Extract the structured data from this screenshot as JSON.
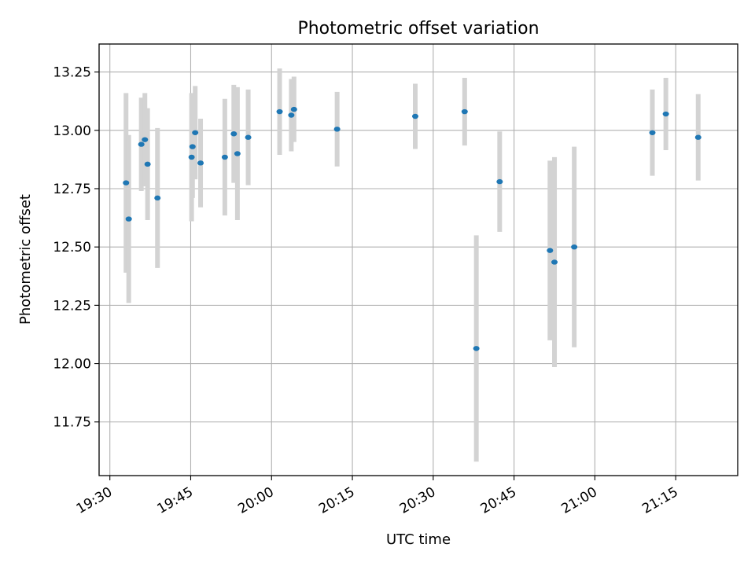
{
  "chart_data": {
    "type": "scatter",
    "title": "Photometric offset variation",
    "xlabel": "UTC time",
    "ylabel": "Photometric offset",
    "x_ticks": [
      "19:30",
      "19:45",
      "20:00",
      "20:15",
      "20:30",
      "20:45",
      "21:00",
      "21:15"
    ],
    "y_ticks": [
      "11.75",
      "12.00",
      "12.25",
      "12.50",
      "12.75",
      "13.00",
      "13.25"
    ],
    "xlim": [
      "19:28:00",
      "21:26:30"
    ],
    "ylim": [
      11.52,
      13.37
    ],
    "grid": true,
    "colors": {
      "point": "#1f77b4",
      "errorbar": "#d3d3d3",
      "grid": "#b0b0b0"
    },
    "series": [
      {
        "points": [
          {
            "x": "19:33:00",
            "y": 12.775,
            "err": 0.385
          },
          {
            "x": "19:33:30",
            "y": 12.62,
            "err": 0.36
          },
          {
            "x": "19:35:50",
            "y": 12.94,
            "err": 0.2
          },
          {
            "x": "19:36:30",
            "y": 12.96,
            "err": 0.2
          },
          {
            "x": "19:37:00",
            "y": 12.855,
            "err": 0.24
          },
          {
            "x": "19:38:50",
            "y": 12.71,
            "err": 0.3
          },
          {
            "x": "19:45:10",
            "y": 12.885,
            "err": 0.275
          },
          {
            "x": "19:45:20",
            "y": 12.93,
            "err": 0.22
          },
          {
            "x": "19:45:50",
            "y": 12.99,
            "err": 0.2
          },
          {
            "x": "19:46:50",
            "y": 12.86,
            "err": 0.19
          },
          {
            "x": "19:51:20",
            "y": 12.885,
            "err": 0.25
          },
          {
            "x": "19:53:00",
            "y": 12.985,
            "err": 0.21
          },
          {
            "x": "19:53:40",
            "y": 12.9,
            "err": 0.285
          },
          {
            "x": "19:55:40",
            "y": 12.97,
            "err": 0.205
          },
          {
            "x": "20:01:30",
            "y": 13.08,
            "err": 0.185
          },
          {
            "x": "20:03:40",
            "y": 13.065,
            "err": 0.155
          },
          {
            "x": "20:04:10",
            "y": 13.09,
            "err": 0.14
          },
          {
            "x": "20:12:10",
            "y": 13.005,
            "err": 0.16
          },
          {
            "x": "20:26:40",
            "y": 13.06,
            "err": 0.14
          },
          {
            "x": "20:35:50",
            "y": 13.08,
            "err": 0.145
          },
          {
            "x": "20:38:00",
            "y": 12.065,
            "err": 0.485
          },
          {
            "x": "20:42:20",
            "y": 12.78,
            "err": 0.215
          },
          {
            "x": "20:51:40",
            "y": 12.485,
            "err": 0.385
          },
          {
            "x": "20:52:30",
            "y": 12.435,
            "err": 0.45
          },
          {
            "x": "20:56:10",
            "y": 12.5,
            "err": 0.43
          },
          {
            "x": "21:10:40",
            "y": 12.99,
            "err": 0.185
          },
          {
            "x": "21:13:10",
            "y": 13.07,
            "err": 0.155
          },
          {
            "x": "21:19:10",
            "y": 12.97,
            "err": 0.185
          }
        ]
      }
    ]
  }
}
